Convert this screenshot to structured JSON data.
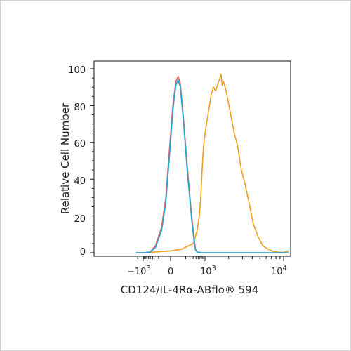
{
  "chart_data": {
    "type": "line",
    "xlabel": "CD124/IL-4Rα-ABflo® 594",
    "ylabel": "Relative Cell Number",
    "x_scale": "logicle (biexponential)",
    "x_ticks": [
      {
        "base": "−10",
        "exp": "3",
        "value": -1000
      },
      {
        "base": "0",
        "exp": "",
        "value": 0
      },
      {
        "base": "10",
        "exp": "3",
        "value": 1000
      },
      {
        "base": "10",
        "exp": "4",
        "value": 10000
      }
    ],
    "ylim": [
      0,
      100
    ],
    "y_ticks": [
      "0",
      "20",
      "40",
      "60",
      "80",
      "100"
    ],
    "grid": false,
    "series": [
      {
        "color": "#f0a020",
        "points": [
          [
            -2500,
            0
          ],
          [
            -900,
            0
          ],
          [
            -300,
            0.3
          ],
          [
            0,
            1
          ],
          [
            150,
            2
          ],
          [
            300,
            5
          ],
          [
            450,
            12
          ],
          [
            560,
            20
          ],
          [
            650,
            30
          ],
          [
            740,
            44
          ],
          [
            830,
            55
          ],
          [
            930,
            62
          ],
          [
            1030,
            68
          ],
          [
            1120,
            78
          ],
          [
            1200,
            86
          ],
          [
            1280,
            90
          ],
          [
            1360,
            88
          ],
          [
            1440,
            91
          ],
          [
            1520,
            94
          ],
          [
            1600,
            97
          ],
          [
            1650,
            91
          ],
          [
            1720,
            93
          ],
          [
            1830,
            89
          ],
          [
            1980,
            82
          ],
          [
            2150,
            74
          ],
          [
            2350,
            65
          ],
          [
            2600,
            58
          ],
          [
            2900,
            45
          ],
          [
            3200,
            38
          ],
          [
            3600,
            28
          ],
          [
            4100,
            16
          ],
          [
            4700,
            9
          ],
          [
            5400,
            4
          ],
          [
            6300,
            2
          ],
          [
            7300,
            0.8
          ],
          [
            8600,
            0.3
          ],
          [
            10000,
            0.2
          ],
          [
            11500,
            1
          ]
        ]
      },
      {
        "color": "#e06666",
        "points": [
          [
            -2500,
            0
          ],
          [
            -900,
            0
          ],
          [
            -400,
            0.5
          ],
          [
            -250,
            4
          ],
          [
            -150,
            14
          ],
          [
            -80,
            30
          ],
          [
            -20,
            56
          ],
          [
            30,
            80
          ],
          [
            70,
            93
          ],
          [
            100,
            96
          ],
          [
            130,
            92
          ],
          [
            170,
            74
          ],
          [
            220,
            48
          ],
          [
            280,
            20
          ],
          [
            330,
            8
          ],
          [
            380,
            2
          ],
          [
            450,
            0.5
          ],
          [
            700,
            0
          ],
          [
            11500,
            0
          ]
        ]
      },
      {
        "color": "#26a6d1",
        "points": [
          [
            -2500,
            0
          ],
          [
            -900,
            0
          ],
          [
            -400,
            0.4
          ],
          [
            -250,
            3
          ],
          [
            -150,
            12
          ],
          [
            -80,
            27
          ],
          [
            -20,
            52
          ],
          [
            30,
            77
          ],
          [
            70,
            91
          ],
          [
            100,
            94
          ],
          [
            130,
            90
          ],
          [
            170,
            72
          ],
          [
            220,
            45
          ],
          [
            280,
            18
          ],
          [
            330,
            6
          ],
          [
            380,
            1.5
          ],
          [
            450,
            0.3
          ],
          [
            700,
            0
          ],
          [
            11500,
            0
          ]
        ]
      }
    ]
  }
}
